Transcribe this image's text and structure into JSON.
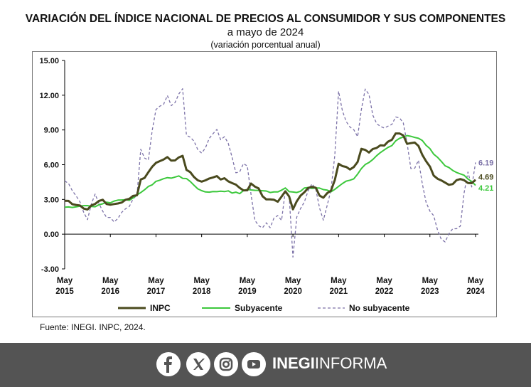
{
  "header": {
    "title": "VARIACIÓN DEL ÍNDICE NACIONAL DE PRECIOS AL CONSUMIDOR Y SUS COMPONENTES",
    "subtitle": "a mayo de 2024",
    "note": "(variación porcentual anual)"
  },
  "source": "Fuente: INEGI. INPC, 2024.",
  "footer": {
    "brand_bold": "INEGI",
    "brand_light": "INFORMA",
    "icons": [
      "facebook-icon",
      "x-icon",
      "instagram-icon",
      "youtube-icon"
    ]
  },
  "chart_data": {
    "type": "line",
    "ylim": [
      -3,
      15
    ],
    "yticks": [
      "15.00",
      "12.00",
      "9.00",
      "6.00",
      "3.00",
      "0.00",
      "-3.00"
    ],
    "xticks": [
      {
        "month": "May",
        "year": "2015"
      },
      {
        "month": "May",
        "year": "2016"
      },
      {
        "month": "May",
        "year": "2017"
      },
      {
        "month": "May",
        "year": "2018"
      },
      {
        "month": "May",
        "year": "2019"
      },
      {
        "month": "May",
        "year": "2020"
      },
      {
        "month": "May",
        "year": "2021"
      },
      {
        "month": "May",
        "year": "2022"
      },
      {
        "month": "May",
        "year": "2023"
      },
      {
        "month": "May",
        "year": "2024"
      }
    ],
    "x_start": "May 2015",
    "x_end": "May 2024",
    "series": [
      {
        "name": "INPC",
        "color": "#4a4a1e",
        "style": "solid",
        "values": [
          2.88,
          2.87,
          2.59,
          2.52,
          2.48,
          2.21,
          2.13,
          2.48,
          2.61,
          2.87,
          2.97,
          2.6,
          2.54,
          2.6,
          2.65,
          2.73,
          2.97,
          3.06,
          3.31,
          3.36,
          4.72,
          4.86,
          5.35,
          5.82,
          6.16,
          6.31,
          6.44,
          6.66,
          6.35,
          6.37,
          6.63,
          6.77,
          5.55,
          5.36,
          4.93,
          4.65,
          4.54,
          4.65,
          4.81,
          4.9,
          5.02,
          4.72,
          4.83,
          4.56,
          4.41,
          4.28,
          4.0,
          3.78,
          3.79,
          4.37,
          4.11,
          3.95,
          3.28,
          3.0,
          3.0,
          2.97,
          2.8,
          3.24,
          3.7,
          3.25,
          2.15,
          2.84,
          3.33,
          3.62,
          3.99,
          4.09,
          4.01,
          3.33,
          3.15,
          3.54,
          3.76,
          4.67,
          6.08,
          5.88,
          5.81,
          5.59,
          5.8,
          6.24,
          7.37,
          7.28,
          7.05,
          7.36,
          7.45,
          7.68,
          7.65,
          7.99,
          8.15,
          8.7,
          8.7,
          8.53,
          7.8,
          7.86,
          7.91,
          7.62,
          6.85,
          6.3,
          5.84,
          5.06,
          4.79,
          4.64,
          4.45,
          4.26,
          4.32,
          4.66,
          4.76,
          4.66,
          4.42,
          4.4,
          4.69
        ]
      },
      {
        "name": "Subyacente",
        "color": "#3cc83c",
        "style": "solid",
        "values": [
          2.33,
          2.35,
          2.31,
          2.36,
          2.42,
          2.46,
          2.47,
          2.39,
          2.37,
          2.54,
          2.62,
          2.76,
          2.71,
          2.86,
          2.94,
          2.95,
          2.97,
          2.93,
          3.13,
          3.39,
          3.59,
          3.84,
          4.12,
          4.26,
          4.56,
          4.66,
          4.79,
          4.88,
          4.84,
          4.93,
          5.03,
          4.82,
          4.8,
          4.55,
          4.22,
          3.91,
          3.76,
          3.65,
          3.63,
          3.68,
          3.67,
          3.71,
          3.68,
          3.74,
          3.55,
          3.63,
          3.5,
          3.77,
          3.87,
          3.82,
          3.79,
          3.78,
          3.75,
          3.73,
          3.6,
          3.65,
          3.65,
          3.8,
          3.99,
          3.67,
          3.64,
          3.6,
          3.71,
          3.99,
          4.03,
          3.95,
          4.0,
          3.98,
          3.85,
          3.8,
          3.66,
          3.87,
          4.12,
          4.37,
          4.58,
          4.66,
          4.78,
          5.19,
          5.67,
          6.01,
          6.19,
          6.45,
          6.78,
          7.05,
          7.28,
          7.49,
          7.65,
          8.05,
          8.27,
          8.39,
          8.51,
          8.45,
          8.35,
          8.28,
          8.09,
          7.67,
          7.39,
          6.91,
          6.64,
          6.29,
          5.9,
          5.76,
          5.5,
          5.33,
          5.21,
          5.09,
          4.76,
          4.55,
          4.21
        ]
      },
      {
        "name": "No subyacente",
        "color": "#7c72a8",
        "style": "dashed",
        "values": [
          4.6,
          4.38,
          3.76,
          3.3,
          2.8,
          1.88,
          1.26,
          2.6,
          3.46,
          2.65,
          1.99,
          1.45,
          1.44,
          1.05,
          1.36,
          1.89,
          2.19,
          2.4,
          3.05,
          3.36,
          7.33,
          6.57,
          6.4,
          8.95,
          10.76,
          11.05,
          11.21,
          11.97,
          11.1,
          11.36,
          12.11,
          12.56,
          8.54,
          8.38,
          8.03,
          7.29,
          7.0,
          7.45,
          8.28,
          8.68,
          9.05,
          8.15,
          8.42,
          7.85,
          6.64,
          5.3,
          5.38,
          6.1,
          5.89,
          3.41,
          1.2,
          0.73,
          0.55,
          0.98,
          0.56,
          1.39,
          1.61,
          1.19,
          3.75,
          3.3,
          -1.98,
          1.48,
          2.21,
          2.79,
          3.76,
          4.35,
          3.91,
          2.24,
          1.21,
          2.49,
          3.82,
          6.81,
          12.34,
          10.65,
          9.73,
          9.25,
          9.02,
          8.42,
          10.78,
          12.53,
          12.06,
          10.27,
          9.55,
          9.3,
          9.17,
          9.33,
          9.48,
          10.12,
          10.04,
          9.62,
          7.85,
          5.66,
          5.69,
          6.38,
          4.36,
          2.75,
          1.99,
          1.6,
          0.36,
          -0.45,
          -0.67,
          0.03,
          0.47,
          0.47,
          0.7,
          3.57,
          5.37,
          4.08,
          6.19
        ]
      }
    ],
    "end_labels": [
      {
        "series": "No subyacente",
        "text": "6.19",
        "color": "#7c72a8"
      },
      {
        "series": "INPC",
        "text": "4.69",
        "color": "#4a4a1e"
      },
      {
        "series": "Subyacente",
        "text": "4.21",
        "color": "#3cc83c"
      }
    ],
    "legend": {
      "placement": "bottom",
      "entries": [
        "INPC",
        "Subyacente",
        "No subyacente"
      ]
    },
    "grid": false
  }
}
